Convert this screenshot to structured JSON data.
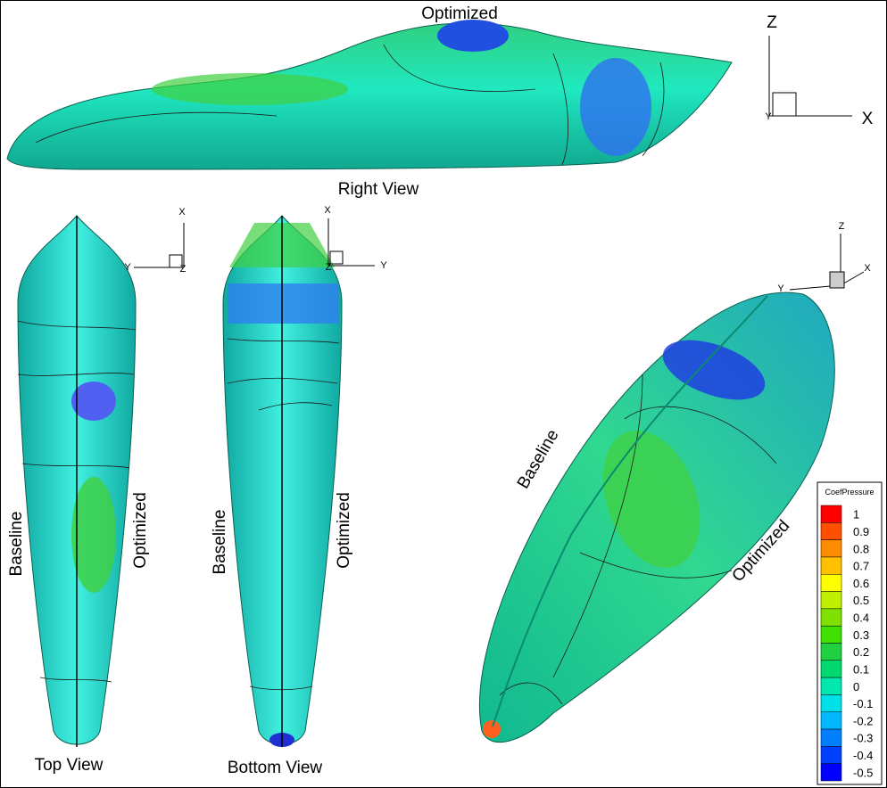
{
  "views": {
    "right": {
      "top_label": "Optimized",
      "caption": "Right View",
      "axes": [
        "Z",
        "Y",
        "X"
      ]
    },
    "top": {
      "left_label": "Baseline",
      "right_label": "Optimized",
      "caption": "Top View",
      "axes": [
        "X",
        "Y",
        "Z"
      ]
    },
    "bottom": {
      "left_label": "Baseline",
      "right_label": "Optimized",
      "caption": "Bottom View",
      "axes": [
        "X",
        "Z",
        "Y"
      ]
    },
    "iso": {
      "left_label": "Baseline",
      "right_label": "Optimized",
      "axes": [
        "Z",
        "Y",
        "X"
      ]
    }
  },
  "legend": {
    "title": "CoefPressure",
    "levels": [
      {
        "value": 1,
        "color": "#ff0000"
      },
      {
        "value": 0.9,
        "color": "#ff5000"
      },
      {
        "value": 0.8,
        "color": "#ff8c00"
      },
      {
        "value": 0.7,
        "color": "#ffc000"
      },
      {
        "value": 0.6,
        "color": "#ffff00"
      },
      {
        "value": 0.5,
        "color": "#c0f000"
      },
      {
        "value": 0.4,
        "color": "#80e000"
      },
      {
        "value": 0.3,
        "color": "#40e000"
      },
      {
        "value": 0.2,
        "color": "#20d040"
      },
      {
        "value": 0.1,
        "color": "#00d870"
      },
      {
        "value": 0,
        "color": "#00e8b0"
      },
      {
        "value": -0.1,
        "color": "#00e0e8"
      },
      {
        "value": -0.2,
        "color": "#00b8ff"
      },
      {
        "value": -0.3,
        "color": "#0080ff"
      },
      {
        "value": -0.4,
        "color": "#0040ff"
      },
      {
        "value": -0.5,
        "color": "#0000ff"
      }
    ]
  }
}
